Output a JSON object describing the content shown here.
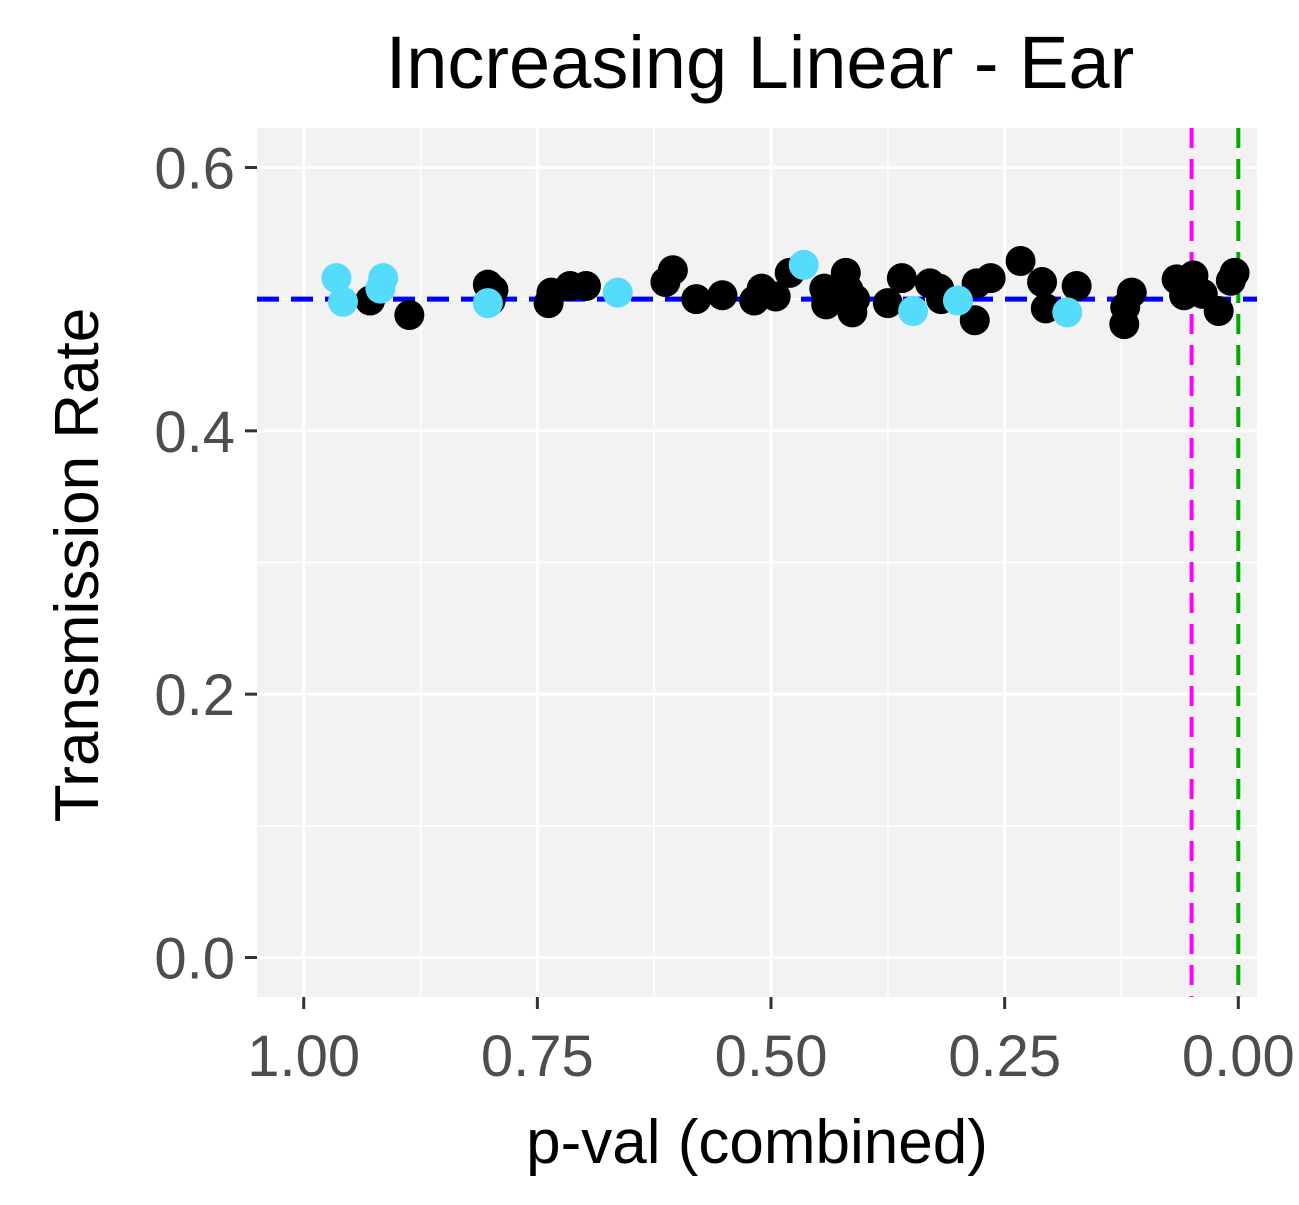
{
  "chart_data": {
    "type": "scatter",
    "title": "Increasing Linear - Ear",
    "xlabel": "p-val (combined)",
    "ylabel": "Transmission Rate",
    "x_reversed": true,
    "xlim": [
      1.05,
      -0.02
    ],
    "ylim": [
      -0.03,
      0.63
    ],
    "x_ticks": [
      1.0,
      0.75,
      0.5,
      0.25,
      0.0
    ],
    "x_tick_labels": [
      "1.00",
      "0.75",
      "0.50",
      "0.25",
      "0.00"
    ],
    "y_ticks": [
      0.0,
      0.2,
      0.4,
      0.6
    ],
    "y_tick_labels": [
      "0.0",
      "0.2",
      "0.4",
      "0.6"
    ],
    "grid": true,
    "panel_color": "#f2f2f2",
    "grid_color": "#ffffff",
    "reference_lines": [
      {
        "orientation": "horizontal",
        "value": 0.5,
        "color": "#0000ff",
        "style": "dashed"
      },
      {
        "orientation": "vertical",
        "value": 0.05,
        "color": "#ff00ff",
        "style": "dashed"
      },
      {
        "orientation": "vertical",
        "value": 0.0,
        "color": "#00aa00",
        "style": "dashed"
      }
    ],
    "series": [
      {
        "color": "#000000",
        "points": [
          [
            0.929,
            0.499
          ],
          [
            0.887,
            0.488
          ],
          [
            0.803,
            0.511
          ],
          [
            0.797,
            0.507
          ],
          [
            0.8,
            0.499
          ],
          [
            0.738,
            0.497
          ],
          [
            0.735,
            0.505
          ],
          [
            0.715,
            0.51
          ],
          [
            0.698,
            0.51
          ],
          [
            0.613,
            0.513
          ],
          [
            0.605,
            0.522
          ],
          [
            0.58,
            0.5
          ],
          [
            0.552,
            0.503
          ],
          [
            0.518,
            0.499
          ],
          [
            0.51,
            0.508
          ],
          [
            0.495,
            0.502
          ],
          [
            0.48,
            0.52
          ],
          [
            0.443,
            0.508
          ],
          [
            0.441,
            0.496
          ],
          [
            0.42,
            0.52
          ],
          [
            0.417,
            0.507
          ],
          [
            0.413,
            0.49
          ],
          [
            0.41,
            0.5
          ],
          [
            0.375,
            0.497
          ],
          [
            0.36,
            0.516
          ],
          [
            0.33,
            0.512
          ],
          [
            0.32,
            0.508
          ],
          [
            0.318,
            0.5
          ],
          [
            0.282,
            0.484
          ],
          [
            0.28,
            0.512
          ],
          [
            0.265,
            0.516
          ],
          [
            0.233,
            0.529
          ],
          [
            0.21,
            0.513
          ],
          [
            0.206,
            0.493
          ],
          [
            0.173,
            0.51
          ],
          [
            0.122,
            0.481
          ],
          [
            0.121,
            0.494
          ],
          [
            0.114,
            0.505
          ],
          [
            0.066,
            0.515
          ],
          [
            0.058,
            0.503
          ],
          [
            0.048,
            0.518
          ],
          [
            0.038,
            0.504
          ],
          [
            0.021,
            0.491
          ],
          [
            0.008,
            0.514
          ],
          [
            0.004,
            0.52
          ]
        ]
      },
      {
        "color": "#55dbfc",
        "points": [
          [
            0.965,
            0.516
          ],
          [
            0.958,
            0.498
          ],
          [
            0.918,
            0.508
          ],
          [
            0.915,
            0.516
          ],
          [
            0.803,
            0.497
          ],
          [
            0.664,
            0.505
          ],
          [
            0.465,
            0.526
          ],
          [
            0.3,
            0.499
          ],
          [
            0.348,
            0.491
          ],
          [
            0.183,
            0.49
          ]
        ]
      }
    ]
  }
}
